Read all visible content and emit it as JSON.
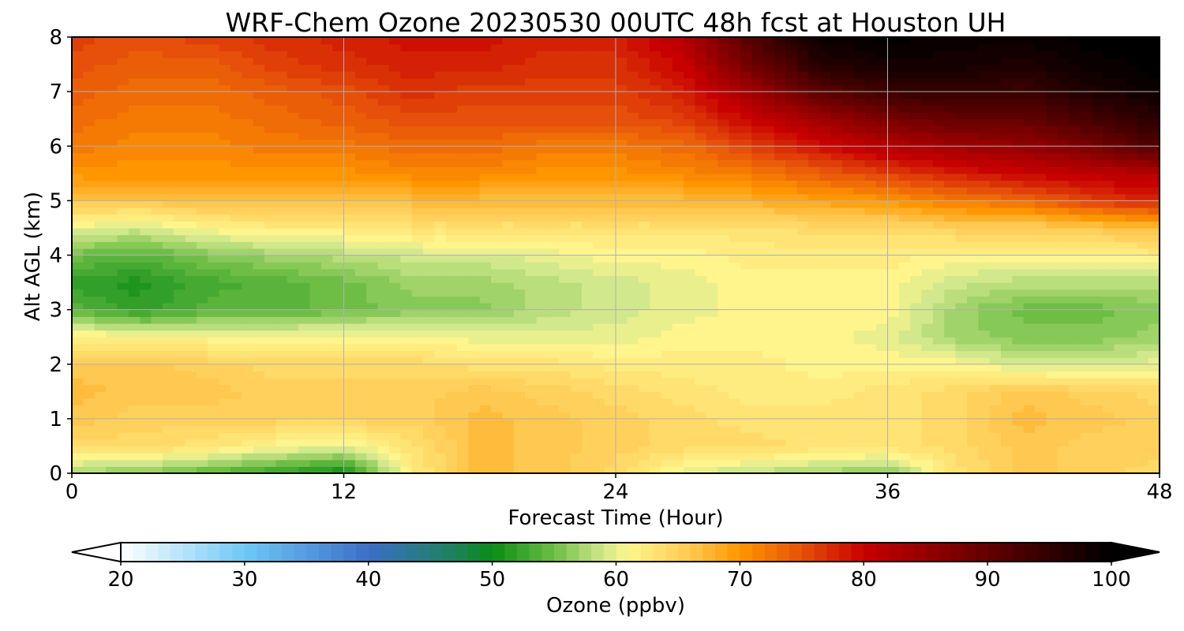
{
  "chart_data": {
    "type": "heatmap",
    "title": "WRF-Chem Ozone  20230530 00UTC 48h fcst at Houston UH",
    "xlabel": "Forecast Time (Hour)",
    "ylabel": "Alt AGL (km)",
    "xlim": [
      0,
      48
    ],
    "ylim": [
      0,
      8
    ],
    "xticks": [
      0,
      12,
      24,
      36,
      48
    ],
    "yticks": [
      0,
      1,
      2,
      3,
      4,
      5,
      6,
      7,
      8
    ],
    "grid": true,
    "colorbar": {
      "label": "Ozone  (ppbv)",
      "min": 20,
      "max": 100,
      "ticks": [
        20,
        30,
        40,
        50,
        60,
        70,
        80,
        90,
        100
      ],
      "extend": "both",
      "orientation": "horizontal"
    },
    "x": [
      0,
      3,
      6,
      9,
      12,
      15,
      18,
      21,
      24,
      27,
      30,
      33,
      36,
      39,
      42,
      45,
      48
    ],
    "y": [
      0,
      0.5,
      1,
      1.5,
      2,
      2.5,
      3,
      3.5,
      4,
      4.5,
      5,
      5.5,
      6,
      6.5,
      7,
      7.5,
      8
    ],
    "z": [
      [
        57,
        56,
        54,
        52,
        50,
        62,
        67,
        66,
        64,
        60,
        58,
        57,
        56,
        63,
        66,
        65,
        64
      ],
      [
        64,
        64,
        63,
        61,
        60,
        63,
        67,
        66,
        65,
        64,
        64,
        63,
        63,
        64,
        66,
        65,
        65
      ],
      [
        66,
        65,
        65,
        65,
        65,
        65,
        67,
        66,
        65,
        64,
        63,
        63,
        63,
        64,
        67,
        66,
        65
      ],
      [
        67,
        66,
        66,
        65,
        65,
        65,
        66,
        65,
        64,
        63,
        62,
        62,
        63,
        64,
        66,
        65,
        64
      ],
      [
        66,
        66,
        65,
        64,
        64,
        64,
        63,
        63,
        62,
        62,
        62,
        61,
        61,
        61,
        59,
        59,
        60
      ],
      [
        62,
        61,
        61,
        61,
        61,
        61,
        60,
        60,
        60,
        61,
        61,
        61,
        60,
        57,
        56,
        56,
        57
      ],
      [
        54,
        52,
        54,
        54,
        55,
        56,
        56,
        58,
        59,
        60,
        61,
        61,
        61,
        57,
        55,
        55,
        56
      ],
      [
        52,
        51,
        53,
        54,
        55,
        57,
        57,
        58,
        59,
        60,
        61,
        61,
        61,
        59,
        58,
        58,
        58
      ],
      [
        55,
        54,
        56,
        57,
        58,
        59,
        59,
        60,
        61,
        61,
        62,
        62,
        62,
        61,
        61,
        61,
        62
      ],
      [
        60,
        59,
        61,
        62,
        62,
        63,
        63,
        63,
        63,
        63,
        63,
        64,
        64,
        65,
        65,
        66,
        67
      ],
      [
        66,
        66,
        67,
        67,
        67,
        67,
        67,
        67,
        67,
        67,
        68,
        69,
        70,
        72,
        73,
        76,
        78
      ],
      [
        70,
        70,
        70,
        70,
        70,
        71,
        71,
        70,
        70,
        71,
        72,
        74,
        76,
        78,
        80,
        81,
        82
      ],
      [
        72,
        71,
        71,
        72,
        72,
        73,
        73,
        72,
        72,
        73,
        76,
        79,
        82,
        84,
        85,
        88,
        92
      ],
      [
        73,
        72,
        72,
        73,
        74,
        75,
        75,
        75,
        75,
        76,
        80,
        84,
        88,
        90,
        90,
        93,
        96
      ],
      [
        74,
        73,
        73,
        74,
        75,
        77,
        76,
        76,
        76,
        78,
        84,
        91,
        94,
        95,
        94,
        97,
        99
      ],
      [
        75,
        74,
        74,
        76,
        77,
        78,
        78,
        77,
        77,
        80,
        89,
        96,
        98,
        98,
        97,
        99,
        100
      ],
      [
        76,
        75,
        76,
        77,
        78,
        79,
        79,
        78,
        78,
        82,
        92,
        99,
        100,
        99,
        99,
        100,
        100
      ]
    ]
  }
}
